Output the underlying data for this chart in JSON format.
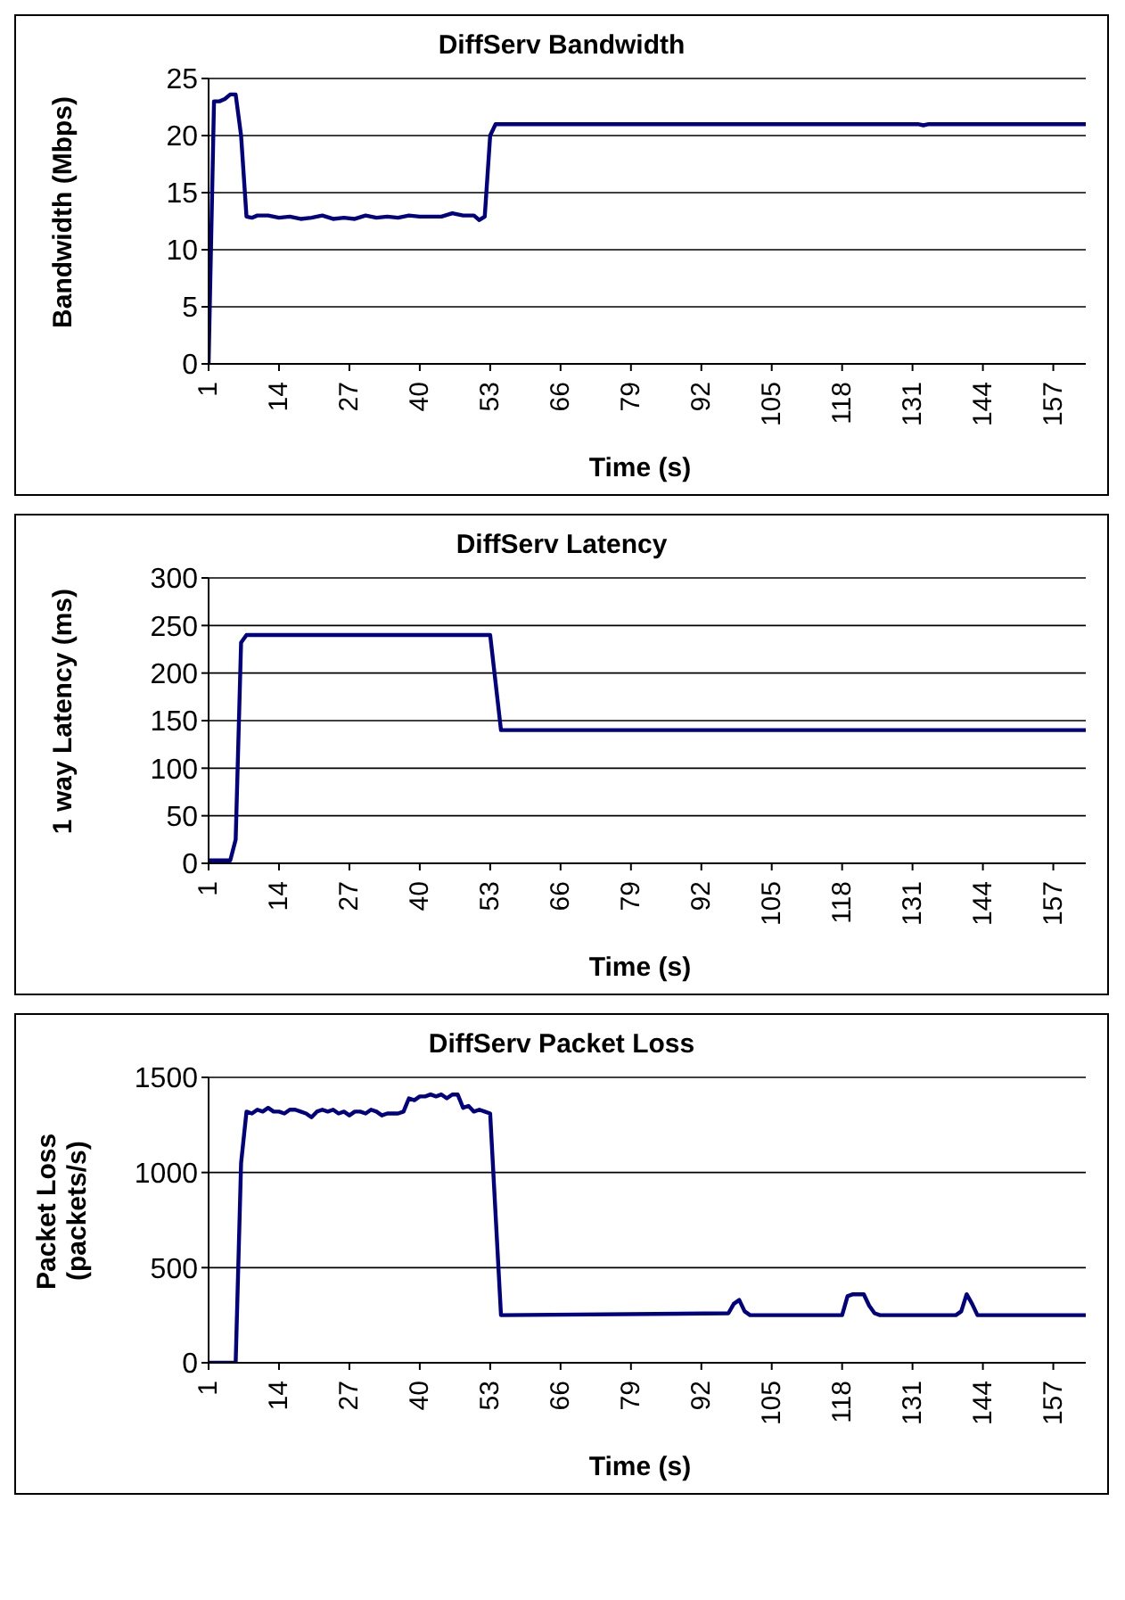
{
  "chart_data": [
    {
      "type": "line",
      "title": "DiffServ Bandwidth",
      "xlabel": "Time (s)",
      "ylabel": "Bandwidth (Mbps)",
      "xlim": [
        1,
        163
      ],
      "xticks": [
        1,
        14,
        27,
        40,
        53,
        66,
        79,
        92,
        105,
        118,
        131,
        144,
        157
      ],
      "ylim": [
        0,
        25
      ],
      "yticks": [
        0,
        5,
        10,
        15,
        20,
        25
      ],
      "grid": "y",
      "legend": false,
      "marker": "none",
      "line_style": "solid",
      "series": [
        {
          "color": "#000080",
          "x": [
            1,
            2,
            3,
            4,
            5,
            6,
            7,
            8,
            9,
            10,
            12,
            14,
            16,
            18,
            20,
            22,
            24,
            26,
            28,
            30,
            32,
            34,
            36,
            38,
            40,
            42,
            44,
            46,
            48,
            50,
            51,
            52,
            53,
            54,
            132,
            133,
            134,
            163
          ],
          "values": [
            0,
            23,
            23,
            23.2,
            23.6,
            23.6,
            20,
            12.9,
            12.8,
            13,
            13,
            12.8,
            12.9,
            12.7,
            12.8,
            13,
            12.7,
            12.8,
            12.7,
            13,
            12.8,
            12.9,
            12.8,
            13,
            12.9,
            12.9,
            12.9,
            13.2,
            13,
            13,
            12.6,
            12.9,
            20,
            21,
            21,
            20.9,
            21,
            21
          ]
        }
      ]
    },
    {
      "type": "line",
      "title": "DiffServ Latency",
      "xlabel": "Time (s)",
      "ylabel": "1 way Latency (ms)",
      "xlim": [
        1,
        163
      ],
      "xticks": [
        1,
        14,
        27,
        40,
        53,
        66,
        79,
        92,
        105,
        118,
        131,
        144,
        157
      ],
      "ylim": [
        0,
        300
      ],
      "yticks": [
        0,
        50,
        100,
        150,
        200,
        250,
        300
      ],
      "grid": "y",
      "legend": false,
      "marker": "none",
      "line_style": "solid",
      "series": [
        {
          "color": "#000080",
          "x": [
            1,
            5,
            6,
            7,
            8,
            53,
            55,
            163
          ],
          "values": [
            3,
            3,
            25,
            232,
            240,
            240,
            140,
            140
          ]
        }
      ]
    },
    {
      "type": "line",
      "title": "DiffServ Packet Loss",
      "xlabel": "Time (s)",
      "ylabel": "Packet Loss (packets/s)",
      "xlim": [
        1,
        163
      ],
      "xticks": [
        1,
        14,
        27,
        40,
        53,
        66,
        79,
        92,
        105,
        118,
        131,
        144,
        157
      ],
      "ylim": [
        0,
        1500
      ],
      "yticks": [
        0,
        500,
        1000,
        1500
      ],
      "grid": "y",
      "legend": false,
      "marker": "none",
      "line_style": "solid",
      "series": [
        {
          "color": "#000080",
          "x": [
            1,
            6,
            7,
            8,
            9,
            10,
            11,
            12,
            13,
            14,
            15,
            16,
            17,
            18,
            19,
            20,
            21,
            22,
            23,
            24,
            25,
            26,
            27,
            28,
            29,
            30,
            31,
            32,
            33,
            34,
            35,
            36,
            37,
            38,
            39,
            40,
            41,
            42,
            43,
            44,
            45,
            46,
            47,
            48,
            49,
            50,
            51,
            52,
            53,
            55,
            97,
            98,
            99,
            100,
            101,
            118,
            119,
            120,
            122,
            123,
            124,
            125,
            139,
            140,
            141,
            142,
            143,
            163
          ],
          "values": [
            0,
            0,
            1050,
            1320,
            1310,
            1330,
            1320,
            1340,
            1320,
            1320,
            1310,
            1330,
            1330,
            1320,
            1310,
            1290,
            1320,
            1330,
            1320,
            1330,
            1310,
            1320,
            1300,
            1320,
            1320,
            1310,
            1330,
            1320,
            1300,
            1310,
            1310,
            1310,
            1320,
            1390,
            1380,
            1400,
            1400,
            1410,
            1400,
            1410,
            1390,
            1410,
            1410,
            1340,
            1350,
            1320,
            1330,
            1320,
            1310,
            250,
            260,
            310,
            330,
            270,
            250,
            250,
            350,
            360,
            360,
            300,
            260,
            250,
            250,
            270,
            360,
            310,
            250,
            250
          ]
        }
      ]
    }
  ]
}
